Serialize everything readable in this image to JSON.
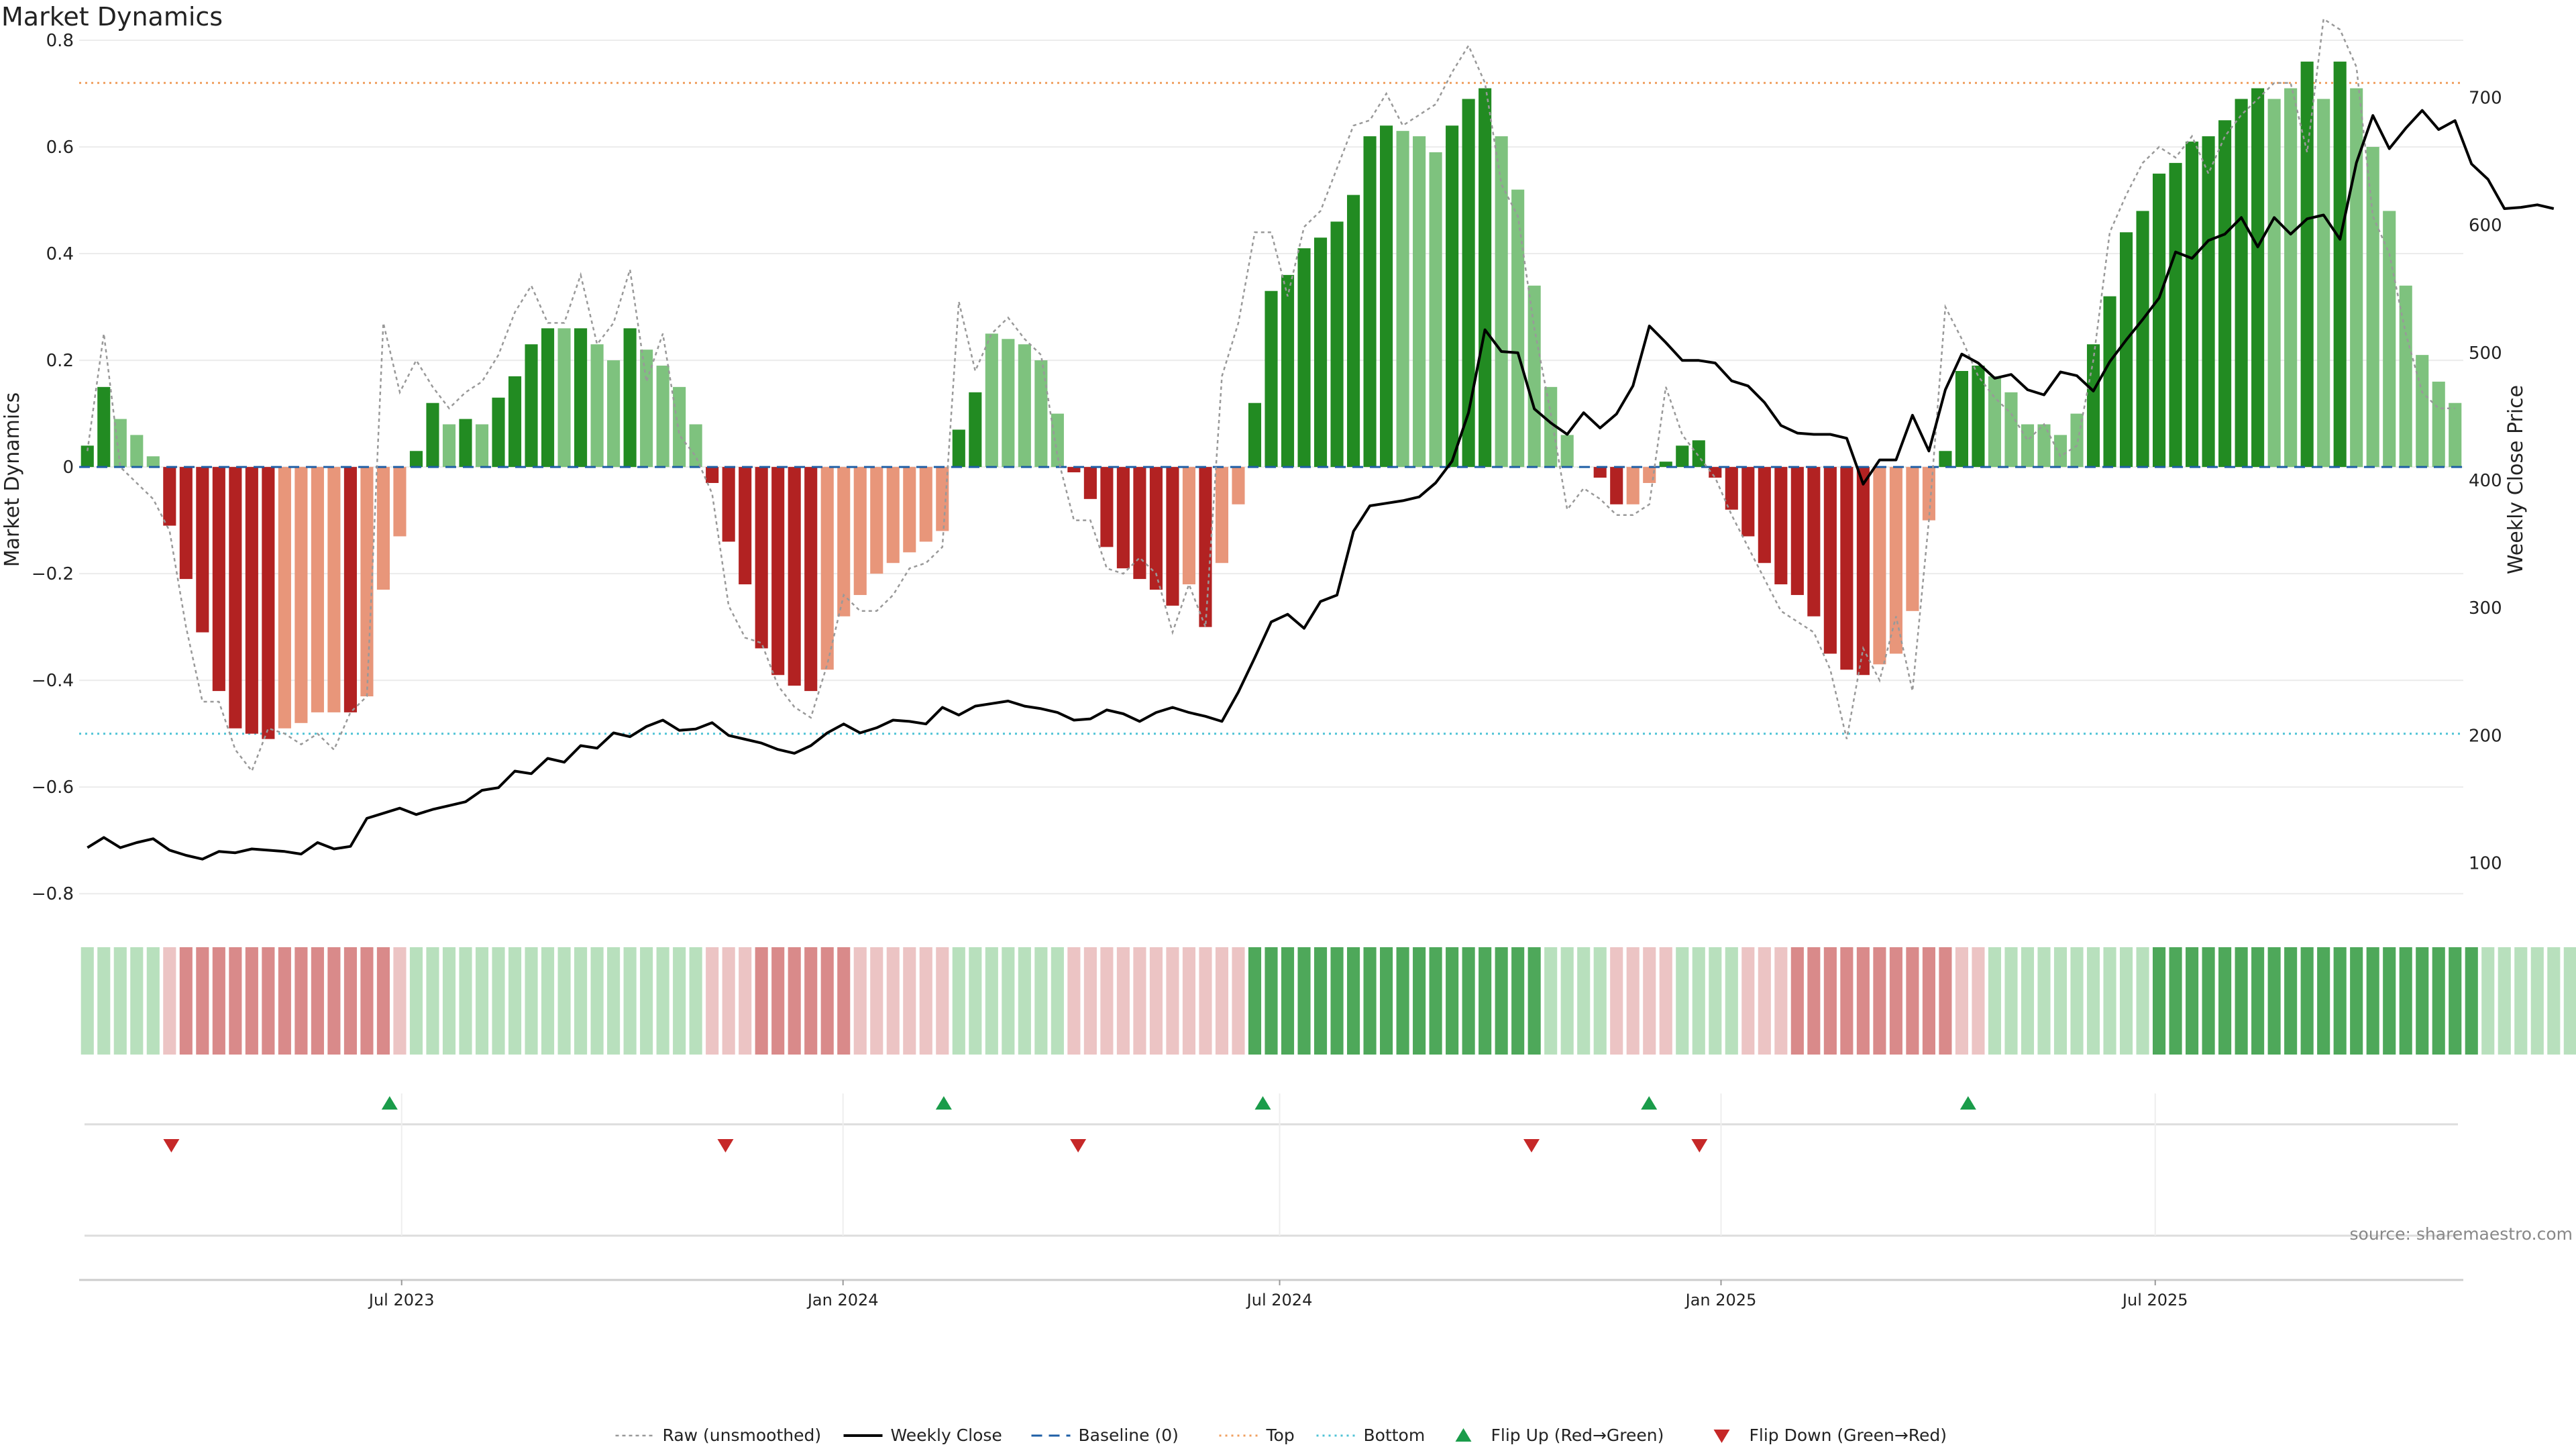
{
  "title": "Market Dynamics",
  "source": "source: sharemaestro.com",
  "colors": {
    "strong_green": "#228b22",
    "light_green": "#7ec27e",
    "strong_red": "#b22222",
    "light_red": "#e8967a",
    "close_line": "#000000",
    "raw_line": "#999999",
    "baseline": "#1f5fa6",
    "top_line": "#f0a060",
    "bottom_line": "#4fc3d6",
    "flip_up": "#1a9c4a",
    "flip_down": "#c62828",
    "band_strong_green": "#4ea85a",
    "band_green": "#b8e0bd",
    "band_red": "#d98a8a",
    "band_pale_red": "#ecc4c4"
  },
  "chart_data": {
    "type": "bar",
    "title": "Market Dynamics",
    "ylabel": "Market Dynamics",
    "y2label": "Weekly Close Price",
    "ylim": [
      -0.85,
      0.8
    ],
    "y2lim": [
      55,
      745
    ],
    "yticks": [
      "0.8",
      "0.6",
      "0.4",
      "0.2",
      "0",
      "−0.2",
      "−0.4",
      "−0.6",
      "−0.8"
    ],
    "y2ticks": [
      "700",
      "600",
      "500",
      "400",
      "300",
      "200",
      "100"
    ],
    "x_start": "2023-02-20",
    "x_end": "2025-11-03",
    "x_tick_dates": [
      "2023-07-01",
      "2024-01-01",
      "2024-07-01",
      "2025-01-01",
      "2025-07-01"
    ],
    "xticks": [
      "Jul 2023",
      "Jan 2024",
      "Jul 2024",
      "Jan 2025",
      "Jul 2025"
    ],
    "grid": true,
    "legend_position": "bottom",
    "reference_lines": {
      "top": 0.72,
      "bottom": -0.5,
      "baseline": 0
    },
    "bar_strength_key": {
      "1": "strong",
      "0": "faded"
    },
    "bars": [
      0.04,
      0.15,
      0.09,
      0.06,
      0.02,
      -0.11,
      -0.21,
      -0.31,
      -0.42,
      -0.49,
      -0.5,
      -0.51,
      -0.49,
      -0.48,
      -0.46,
      -0.46,
      -0.46,
      -0.43,
      -0.23,
      -0.13,
      0.03,
      0.12,
      0.08,
      0.09,
      0.08,
      0.13,
      0.17,
      0.23,
      0.26,
      0.26,
      0.26,
      0.23,
      0.2,
      0.26,
      0.22,
      0.19,
      0.15,
      0.08,
      -0.03,
      -0.14,
      -0.22,
      -0.34,
      -0.39,
      -0.41,
      -0.42,
      -0.38,
      -0.28,
      -0.24,
      -0.2,
      -0.18,
      -0.16,
      -0.14,
      -0.12,
      0.07,
      0.14,
      0.25,
      0.24,
      0.23,
      0.2,
      0.1,
      -0.01,
      -0.06,
      -0.15,
      -0.19,
      -0.21,
      -0.23,
      -0.26,
      -0.22,
      -0.3,
      -0.18,
      -0.07,
      0.12,
      0.33,
      0.36,
      0.41,
      0.43,
      0.46,
      0.51,
      0.62,
      0.64,
      0.63,
      0.62,
      0.59,
      0.64,
      0.69,
      0.71,
      0.62,
      0.52,
      0.34,
      0.15,
      0.06,
      0.0,
      -0.02,
      -0.07,
      -0.07,
      -0.03,
      0.01,
      0.04,
      0.05,
      -0.02,
      -0.08,
      -0.13,
      -0.18,
      -0.22,
      -0.24,
      -0.28,
      -0.35,
      -0.38,
      -0.39,
      -0.37,
      -0.35,
      -0.27,
      -0.1,
      0.03,
      0.18,
      0.19,
      0.17,
      0.14,
      0.08,
      0.08,
      0.06,
      0.1,
      0.23,
      0.32,
      0.44,
      0.48,
      0.55,
      0.57,
      0.61,
      0.62,
      0.65,
      0.69,
      0.71,
      0.69,
      0.71,
      0.76,
      0.69,
      0.76,
      0.71,
      0.6,
      0.48,
      0.34,
      0.21,
      0.16,
      0.12
    ],
    "bar_strength": [
      1,
      1,
      0,
      0,
      0,
      1,
      1,
      1,
      1,
      1,
      1,
      1,
      0,
      0,
      0,
      0,
      1,
      0,
      0,
      0,
      1,
      1,
      0,
      1,
      0,
      1,
      1,
      1,
      1,
      0,
      1,
      0,
      0,
      1,
      0,
      0,
      0,
      0,
      1,
      1,
      1,
      1,
      1,
      1,
      1,
      0,
      0,
      0,
      0,
      0,
      0,
      0,
      0,
      1,
      1,
      0,
      0,
      0,
      0,
      0,
      1,
      1,
      1,
      1,
      1,
      1,
      1,
      0,
      1,
      0,
      0,
      1,
      1,
      1,
      1,
      1,
      1,
      1,
      1,
      1,
      0,
      0,
      0,
      1,
      1,
      1,
      0,
      0,
      0,
      0,
      0,
      0,
      1,
      1,
      0,
      0,
      1,
      1,
      1,
      1,
      1,
      1,
      1,
      1,
      1,
      1,
      1,
      1,
      1,
      0,
      0,
      0,
      0,
      1,
      1,
      1,
      0,
      0,
      0,
      0,
      0,
      0,
      1,
      1,
      1,
      1,
      1,
      1,
      1,
      1,
      1,
      1,
      1,
      0,
      0,
      1,
      0,
      1,
      0,
      0,
      0,
      0,
      0,
      0,
      0
    ],
    "series": [
      {
        "name": "Raw (unsmoothed)",
        "values": [
          0.03,
          0.25,
          0.0,
          -0.03,
          -0.06,
          -0.12,
          -0.3,
          -0.44,
          -0.44,
          -0.53,
          -0.57,
          -0.49,
          -0.5,
          -0.52,
          -0.5,
          -0.53,
          -0.46,
          -0.43,
          0.27,
          0.14,
          0.2,
          0.15,
          0.11,
          0.14,
          0.16,
          0.21,
          0.29,
          0.34,
          0.27,
          0.27,
          0.36,
          0.23,
          0.27,
          0.37,
          0.16,
          0.25,
          0.06,
          0.02,
          -0.05,
          -0.26,
          -0.32,
          -0.33,
          -0.41,
          -0.45,
          -0.47,
          -0.37,
          -0.24,
          -0.27,
          -0.27,
          -0.24,
          -0.19,
          -0.18,
          -0.15,
          0.31,
          0.18,
          0.25,
          0.28,
          0.24,
          0.21,
          0.02,
          -0.1,
          -0.1,
          -0.19,
          -0.2,
          -0.17,
          -0.2,
          -0.31,
          -0.22,
          -0.3,
          0.17,
          0.27,
          0.44,
          0.44,
          0.32,
          0.45,
          0.48,
          0.56,
          0.64,
          0.65,
          0.7,
          0.64,
          0.66,
          0.68,
          0.74,
          0.79,
          0.72,
          0.53,
          0.47,
          0.26,
          0.1,
          -0.08,
          -0.04,
          -0.06,
          -0.09,
          -0.09,
          -0.07,
          0.15,
          0.06,
          0.02,
          -0.02,
          -0.09,
          -0.15,
          -0.21,
          -0.27,
          -0.29,
          -0.31,
          -0.38,
          -0.51,
          -0.34,
          -0.4,
          -0.28,
          -0.42,
          -0.1,
          0.3,
          0.24,
          0.17,
          0.13,
          0.1,
          0.05,
          0.08,
          0.02,
          0.04,
          0.2,
          0.44,
          0.51,
          0.57,
          0.6,
          0.58,
          0.62,
          0.55,
          0.62,
          0.66,
          0.69,
          0.72,
          0.72,
          0.59,
          0.84,
          0.82,
          0.75,
          0.47,
          0.4,
          0.25,
          0.14,
          0.11,
          0.11
        ]
      },
      {
        "name": "Weekly Close",
        "values": [
          112,
          120,
          112,
          116,
          119,
          110,
          106,
          103,
          109,
          108,
          111,
          110,
          109,
          107,
          116,
          111,
          113,
          135,
          139,
          143,
          138,
          142,
          145,
          148,
          157,
          159,
          172,
          170,
          182,
          179,
          192,
          190,
          202,
          199,
          207,
          212,
          204,
          205,
          210,
          200,
          197,
          194,
          189,
          186,
          192,
          202,
          209,
          202,
          206,
          212,
          211,
          209,
          222,
          216,
          223,
          225,
          227,
          223,
          221,
          218,
          212,
          213,
          220,
          217,
          211,
          218,
          222,
          218,
          215,
          211,
          234,
          261,
          289,
          295,
          284,
          305,
          310,
          360,
          380,
          382,
          384,
          387,
          398,
          415,
          453,
          518,
          501,
          500,
          456,
          445,
          436,
          453,
          441,
          452,
          474,
          521,
          508,
          494,
          494,
          492,
          478,
          474,
          461,
          443,
          437,
          436,
          436,
          433,
          397,
          416,
          416,
          451,
          423,
          471,
          499,
          492,
          480,
          483,
          471,
          467,
          485,
          482,
          470,
          493,
          510,
          526,
          543,
          579,
          574,
          588,
          593,
          606,
          583,
          606,
          593,
          605,
          608,
          589,
          649,
          686,
          660,
          676,
          690,
          675,
          682,
          648,
          636,
          613,
          614,
          616,
          613
        ]
      }
    ],
    "flip_up_dates": [
      "2023-06-26",
      "2024-02-12",
      "2024-06-24",
      "2024-12-02",
      "2025-04-14"
    ],
    "flip_down_dates": [
      "2023-03-27",
      "2023-11-13",
      "2024-04-08",
      "2024-10-14",
      "2024-12-23"
    ],
    "band": [
      2,
      2,
      2,
      2,
      2,
      4,
      3,
      3,
      3,
      3,
      3,
      3,
      3,
      3,
      3,
      3,
      3,
      3,
      3,
      4,
      2,
      2,
      2,
      2,
      2,
      2,
      2,
      2,
      2,
      2,
      2,
      2,
      2,
      2,
      2,
      2,
      2,
      2,
      4,
      4,
      4,
      3,
      3,
      3,
      3,
      3,
      3,
      4,
      4,
      4,
      4,
      4,
      4,
      2,
      2,
      2,
      2,
      2,
      2,
      2,
      4,
      4,
      4,
      4,
      4,
      4,
      4,
      4,
      4,
      4,
      4,
      1,
      1,
      1,
      1,
      1,
      1,
      1,
      1,
      1,
      1,
      1,
      1,
      1,
      1,
      1,
      1,
      1,
      1,
      2,
      2,
      2,
      2,
      4,
      4,
      4,
      4,
      2,
      2,
      2,
      2,
      4,
      4,
      4,
      3,
      3,
      3,
      3,
      3,
      3,
      3,
      3,
      3,
      3,
      4,
      4,
      2,
      2,
      2,
      2,
      2,
      2,
      2,
      2,
      2,
      2,
      1,
      1,
      1,
      1,
      1,
      1,
      1,
      1,
      1,
      1,
      1,
      1,
      1,
      1,
      1,
      1,
      1,
      1,
      1,
      1,
      2,
      2,
      2,
      2,
      2,
      2
    ],
    "band_key": {
      "1": "strong green",
      "2": "light green",
      "3": "red",
      "4": "pale red"
    }
  },
  "legend": [
    {
      "label": "Raw (unsmoothed)",
      "icon": "dotted-line-icon"
    },
    {
      "label": "Weekly Close",
      "icon": "solid-line-icon"
    },
    {
      "label": "Baseline (0)",
      "icon": "dashed-line-icon"
    },
    {
      "label": "Top",
      "icon": "dotted-line-icon"
    },
    {
      "label": "Bottom",
      "icon": "dotted-line-icon"
    },
    {
      "label": "Flip Up (Red→Green)",
      "icon": "triangle-up-icon"
    },
    {
      "label": "Flip Down (Green→Red)",
      "icon": "triangle-down-icon"
    }
  ]
}
